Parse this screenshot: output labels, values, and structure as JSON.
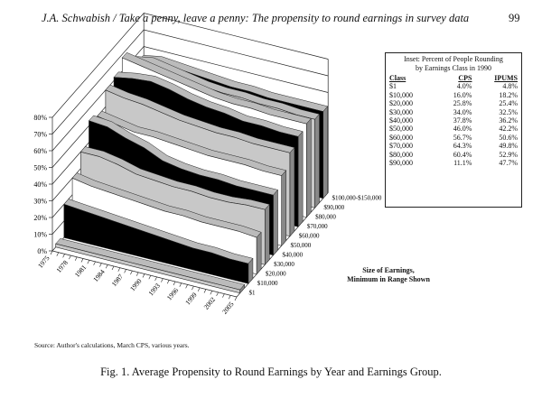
{
  "header": {
    "running_title": "J.A. Schwabish / Take a penny, leave a penny: The propensity to round earnings in survey data",
    "page_number": "99"
  },
  "inset": {
    "title_line1": "Inset: Percent of People Rounding",
    "title_line2": "by Earnings Class in 1990",
    "columns": [
      "Class",
      "CPS",
      "IPUMS"
    ],
    "rows": [
      [
        "$1",
        "4.0%",
        "4.8%"
      ],
      [
        "$10,000",
        "16.0%",
        "18.2%"
      ],
      [
        "$20,000",
        "25.8%",
        "25.4%"
      ],
      [
        "$30,000",
        "34.0%",
        "32.5%"
      ],
      [
        "$40,000",
        "37.8%",
        "36.2%"
      ],
      [
        "$50,000",
        "46.0%",
        "42.2%"
      ],
      [
        "$60,000",
        "56.7%",
        "50.6%"
      ],
      [
        "$70,000",
        "64.3%",
        "49.8%"
      ],
      [
        "$80,000",
        "60.4%",
        "52.9%"
      ],
      [
        "$90,000",
        "11.1%",
        "47.7%"
      ]
    ]
  },
  "source": "Source: Author's calculations, March CPS, various years.",
  "caption": "Fig. 1. Average Propensity to Round Earnings by Year and Earnings Group.",
  "chart_data": {
    "type": "area-3d",
    "xlabel": "",
    "ylabel": "",
    "zlabel_line1": "Size of Earnings,",
    "zlabel_line2": "Minimum in Range Shown",
    "ylim": [
      0,
      80
    ],
    "y_ticks": [
      "0%",
      "10%",
      "20%",
      "30%",
      "40%",
      "50%",
      "60%",
      "70%",
      "80%"
    ],
    "x_ticks": [
      "1975",
      "1978",
      "1981",
      "1984",
      "1987",
      "1990",
      "1993",
      "1996",
      "1999",
      "2002",
      "2005"
    ],
    "x": [
      1975,
      1978,
      1981,
      1984,
      1987,
      1990,
      1993,
      1996,
      1999,
      2002,
      2005
    ],
    "series": [
      {
        "name": "$1",
        "values": [
          2,
          2,
          2,
          2,
          2,
          2,
          2,
          2,
          2,
          2,
          2
        ],
        "color": "#c8c8c8"
      },
      {
        "name": "$10,000",
        "values": [
          20,
          19,
          18,
          17,
          16,
          15,
          14,
          13,
          13,
          12,
          12
        ],
        "color": "#000000"
      },
      {
        "name": "$20,000",
        "values": [
          30,
          28,
          27,
          26,
          25,
          24,
          24,
          23,
          23,
          23,
          22
        ],
        "color": "#ffffff"
      },
      {
        "name": "$30,000",
        "values": [
          40,
          40,
          38,
          35,
          34,
          33,
          33,
          32,
          32,
          33,
          33
        ],
        "color": "#c8c8c8"
      },
      {
        "name": "$40,000",
        "values": [
          53,
          52,
          48,
          45,
          40,
          38,
          37,
          37,
          36,
          36,
          36
        ],
        "color": "#000000"
      },
      {
        "name": "$50,000",
        "values": [
          50,
          48,
          46,
          46,
          45,
          44,
          43,
          43,
          43,
          42,
          42
        ],
        "color": "#ffffff"
      },
      {
        "name": "$60,000",
        "values": [
          60,
          58,
          57,
          55,
          53,
          52,
          51,
          51,
          50,
          50,
          50
        ],
        "color": "#c8c8c8"
      },
      {
        "name": "$70,000",
        "values": [
          62,
          64,
          65,
          63,
          60,
          58,
          57,
          55,
          55,
          54,
          54
        ],
        "color": "#000000"
      },
      {
        "name": "$80,000",
        "values": [
          68,
          66,
          64,
          62,
          60,
          58,
          57,
          57,
          56,
          56,
          56
        ],
        "color": "#ffffff"
      },
      {
        "name": "$90,000",
        "values": [
          60,
          62,
          60,
          58,
          56,
          55,
          55,
          54,
          54,
          53,
          53
        ],
        "color": "#c8c8c8"
      },
      {
        "name": "$100,000-$150,000",
        "values": [
          55,
          57,
          56,
          55,
          54,
          53,
          53,
          52,
          52,
          52,
          52
        ],
        "color": "#000000"
      }
    ]
  }
}
